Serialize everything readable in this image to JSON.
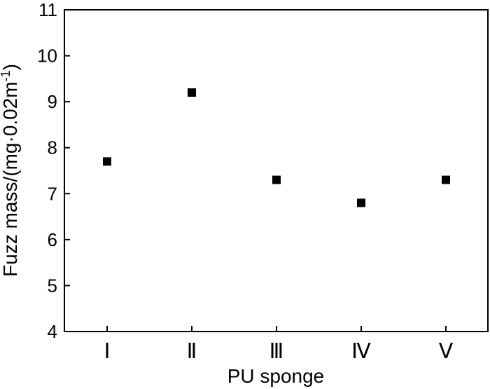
{
  "chart_data": {
    "type": "scatter",
    "categories": [
      "Ⅰ",
      "Ⅱ",
      "Ⅲ",
      "Ⅳ",
      "Ⅴ"
    ],
    "values": [
      7.7,
      9.2,
      7.3,
      6.8,
      7.3
    ],
    "xlabel": "PU sponge",
    "ylabel": "Fuzz mass/(mg·0.02m",
    "ylabel_superscript": "-1",
    "ylabel_suffix": ")",
    "ylim": [
      4,
      11
    ],
    "yticks": [
      4,
      5,
      6,
      7,
      8,
      9,
      10,
      11
    ],
    "marker": "square",
    "marker_color": "#000000",
    "grid": false
  }
}
